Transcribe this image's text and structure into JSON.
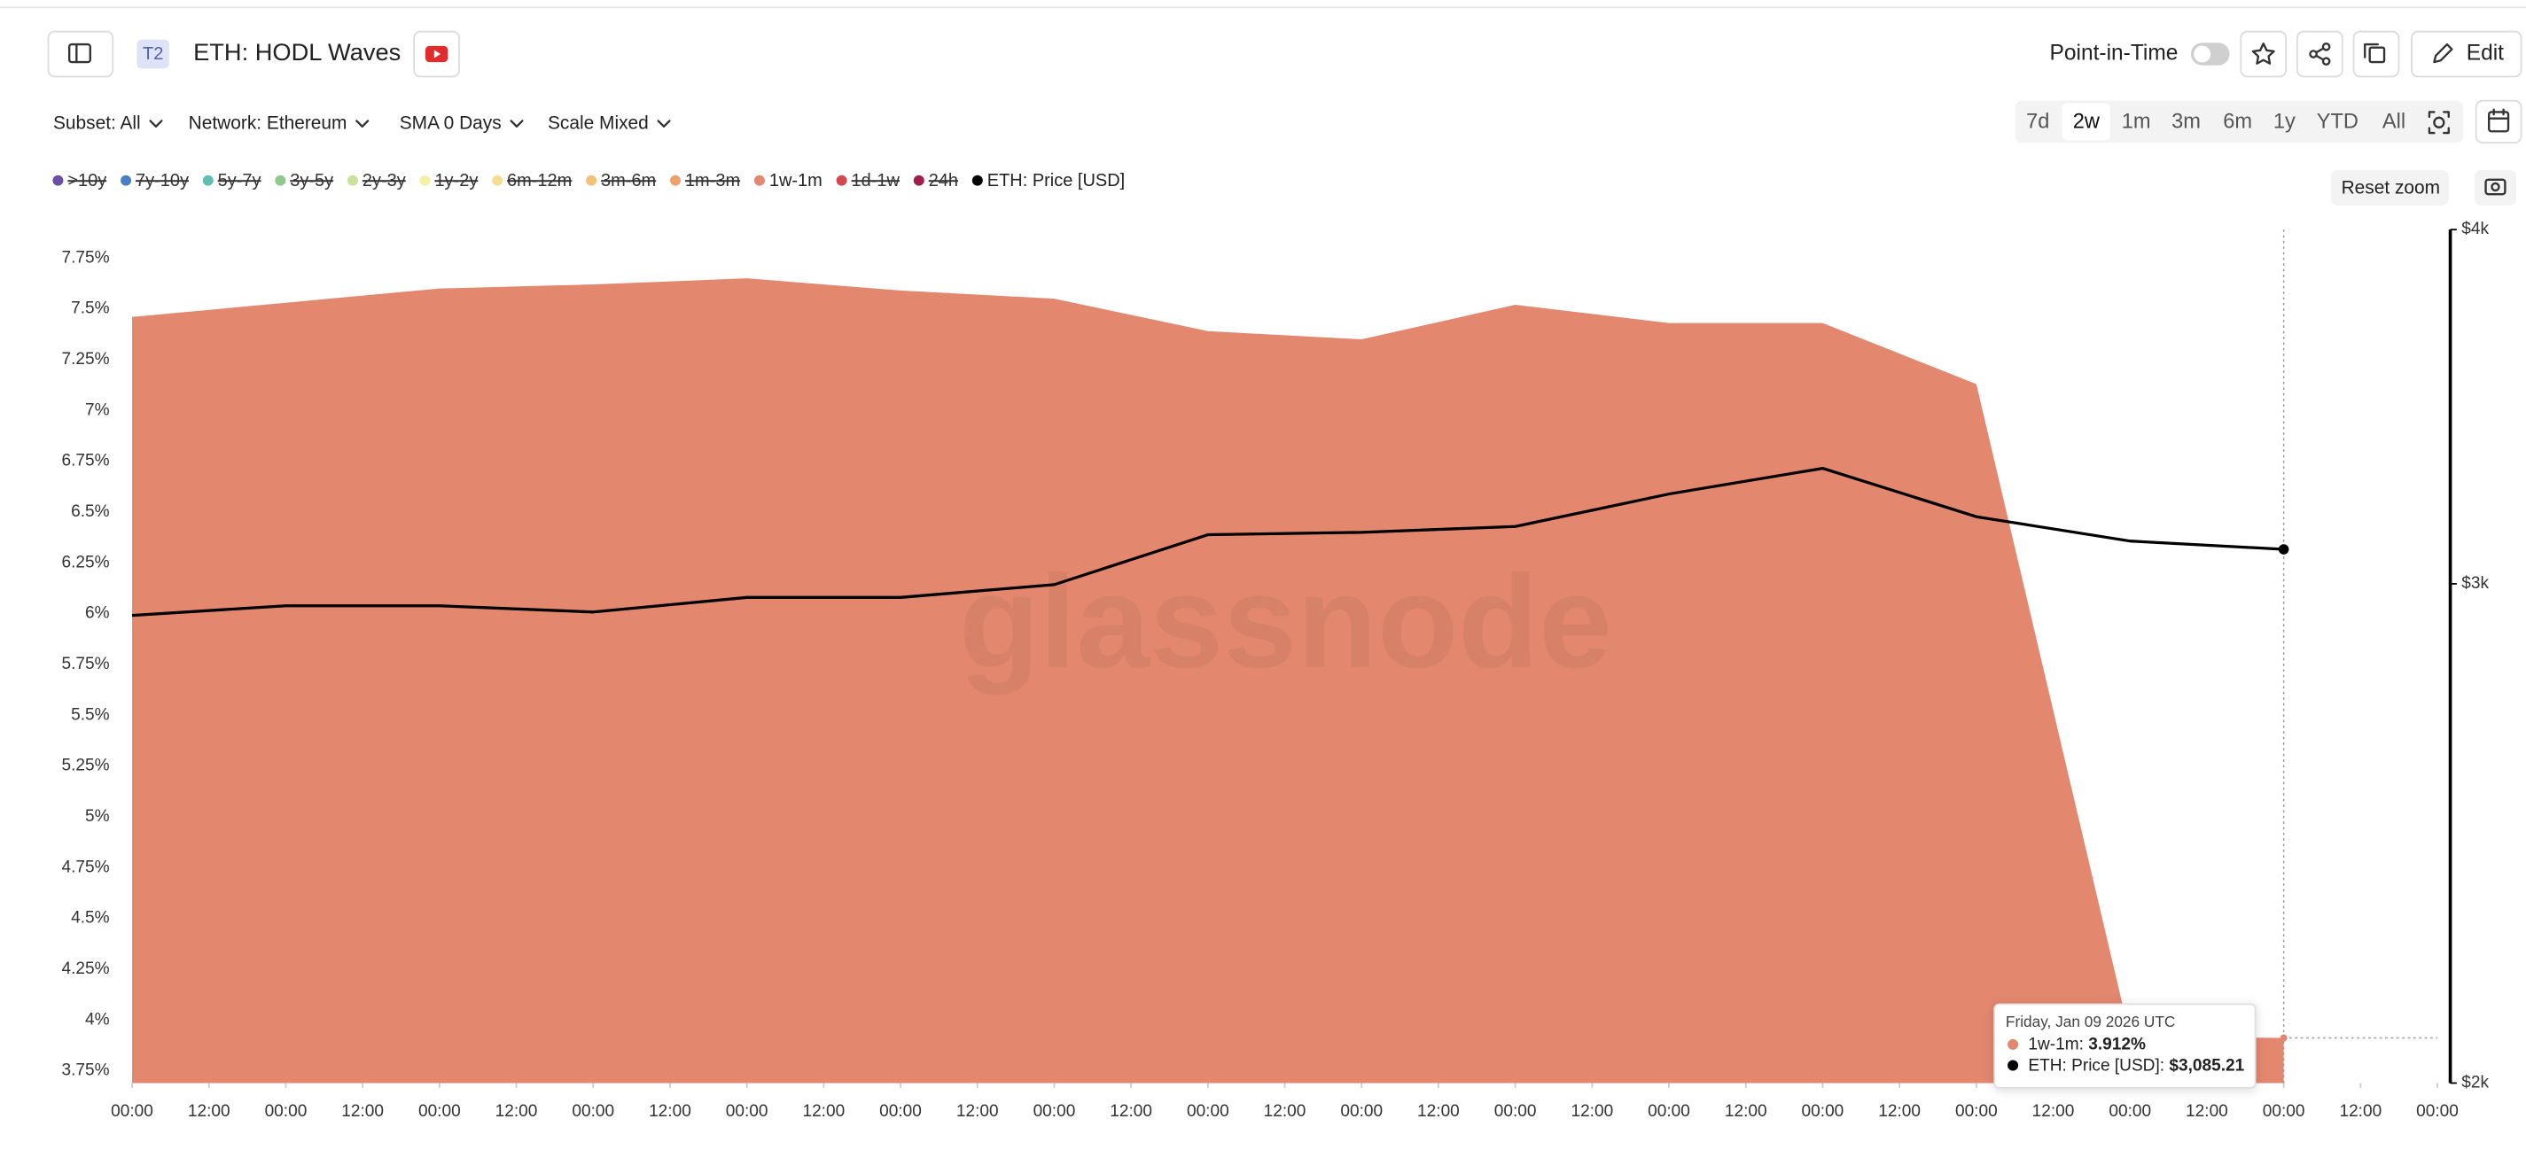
{
  "header": {
    "badge": "T2",
    "title": "ETH: HODL Waves",
    "point_in_time": "Point-in-Time",
    "edit": "Edit"
  },
  "filters": [
    "Subset: All",
    "Network: Ethereum",
    "SMA 0 Days",
    "Scale Mixed"
  ],
  "ranges": [
    "7d",
    "2w",
    "1m",
    "3m",
    "6m",
    "1y",
    "YTD",
    "All"
  ],
  "selected_range_index": 1,
  "reset_zoom": "Reset zoom",
  "watermark": "glassnode",
  "tooltip": {
    "date": "Friday, Jan 09 2026 UTC",
    "rows": [
      {
        "label": "1w-1m: ",
        "value": "3.912%",
        "color": "#e3886f"
      },
      {
        "label": "ETH: Price [USD]: ",
        "value": "$3,085.21",
        "color": "#000000"
      }
    ]
  },
  "chart_data": {
    "type": "area",
    "x": [
      0,
      1,
      2,
      3,
      4,
      5,
      6,
      7,
      8,
      9,
      10,
      11,
      12,
      13,
      14
    ],
    "xlim": [
      0,
      15
    ],
    "xticks": [
      {
        "value": 0,
        "label": "00:00"
      },
      {
        "value": 0.5,
        "label": "12:00"
      },
      {
        "value": 1,
        "label": "00:00"
      },
      {
        "value": 1.5,
        "label": "12:00"
      },
      {
        "value": 2,
        "label": "00:00"
      },
      {
        "value": 2.5,
        "label": "12:00"
      },
      {
        "value": 3,
        "label": "00:00"
      },
      {
        "value": 3.5,
        "label": "12:00"
      },
      {
        "value": 4,
        "label": "00:00"
      },
      {
        "value": 4.5,
        "label": "12:00"
      },
      {
        "value": 5,
        "label": "00:00"
      },
      {
        "value": 5.5,
        "label": "12:00"
      },
      {
        "value": 6,
        "label": "00:00"
      },
      {
        "value": 6.5,
        "label": "12:00"
      },
      {
        "value": 7,
        "label": "00:00"
      },
      {
        "value": 7.5,
        "label": "12:00"
      },
      {
        "value": 8,
        "label": "00:00"
      },
      {
        "value": 8.5,
        "label": "12:00"
      },
      {
        "value": 9,
        "label": "00:00"
      },
      {
        "value": 9.5,
        "label": "12:00"
      },
      {
        "value": 10,
        "label": "00:00"
      },
      {
        "value": 10.5,
        "label": "12:00"
      },
      {
        "value": 11,
        "label": "00:00"
      },
      {
        "value": 11.5,
        "label": "12:00"
      },
      {
        "value": 12,
        "label": "00:00"
      },
      {
        "value": 12.5,
        "label": "12:00"
      },
      {
        "value": 13,
        "label": "00:00"
      },
      {
        "value": 13.5,
        "label": "12:00"
      },
      {
        "value": 14,
        "label": "00:00"
      },
      {
        "value": 14.5,
        "label": "12:00"
      },
      {
        "value": 15,
        "label": "00:00"
      }
    ],
    "ylim": [
      3.69,
      7.89
    ],
    "yticks": [
      {
        "value": 3.75,
        "label": "3.75%"
      },
      {
        "value": 4,
        "label": "4%"
      },
      {
        "value": 4.25,
        "label": "4.25%"
      },
      {
        "value": 4.5,
        "label": "4.5%"
      },
      {
        "value": 4.75,
        "label": "4.75%"
      },
      {
        "value": 5,
        "label": "5%"
      },
      {
        "value": 5.25,
        "label": "5.25%"
      },
      {
        "value": 5.5,
        "label": "5.5%"
      },
      {
        "value": 5.75,
        "label": "5.75%"
      },
      {
        "value": 6,
        "label": "6%"
      },
      {
        "value": 6.25,
        "label": "6.25%"
      },
      {
        "value": 6.5,
        "label": "6.5%"
      },
      {
        "value": 6.75,
        "label": "6.75%"
      },
      {
        "value": 7,
        "label": "7%"
      },
      {
        "value": 7.25,
        "label": "7.25%"
      },
      {
        "value": 7.5,
        "label": "7.5%"
      },
      {
        "value": 7.75,
        "label": "7.75%"
      }
    ],
    "y2lim": [
      2000,
      4000
    ],
    "y2log": true,
    "y2ticks": [
      {
        "value": 2000,
        "label": "$2k"
      },
      {
        "value": 3000,
        "label": "$3k"
      },
      {
        "value": 4000,
        "label": "$4k"
      }
    ],
    "grid": false,
    "series": [
      {
        "name": ">10y",
        "color": "#6b4fa6",
        "visible": false
      },
      {
        "name": "7y-10y",
        "color": "#4a7fc1",
        "visible": false
      },
      {
        "name": "5y-7y",
        "color": "#5fbfb0",
        "visible": false
      },
      {
        "name": "3y-5y",
        "color": "#90c98d",
        "visible": false
      },
      {
        "name": "2y-3y",
        "color": "#c8e29c",
        "visible": false
      },
      {
        "name": "1y-2y",
        "color": "#f3f0a8",
        "visible": false
      },
      {
        "name": "6m-12m",
        "color": "#f7dc95",
        "visible": false
      },
      {
        "name": "3m-6m",
        "color": "#f5c07a",
        "visible": false
      },
      {
        "name": "1m-3m",
        "color": "#f0a06a",
        "visible": false
      },
      {
        "name": "1w-1m",
        "color": "#e3886f",
        "visible": true,
        "type": "area",
        "values": [
          7.46,
          7.53,
          7.6,
          7.62,
          7.65,
          7.59,
          7.55,
          7.39,
          7.35,
          7.52,
          7.43,
          7.43,
          7.13,
          3.92,
          3.912
        ]
      },
      {
        "name": "1d-1w",
        "color": "#d2494f",
        "visible": false
      },
      {
        "name": "24h",
        "color": "#9e1e4f",
        "visible": false
      },
      {
        "name": "ETH: Price [USD]",
        "color": "#000000",
        "visible": true,
        "type": "line",
        "axis": "y2",
        "values": [
          2924,
          2947,
          2947,
          2932,
          2967,
          2967,
          2998,
          3122,
          3128,
          3143,
          3227,
          3295,
          3168,
          3106,
          3085.21
        ]
      }
    ]
  }
}
